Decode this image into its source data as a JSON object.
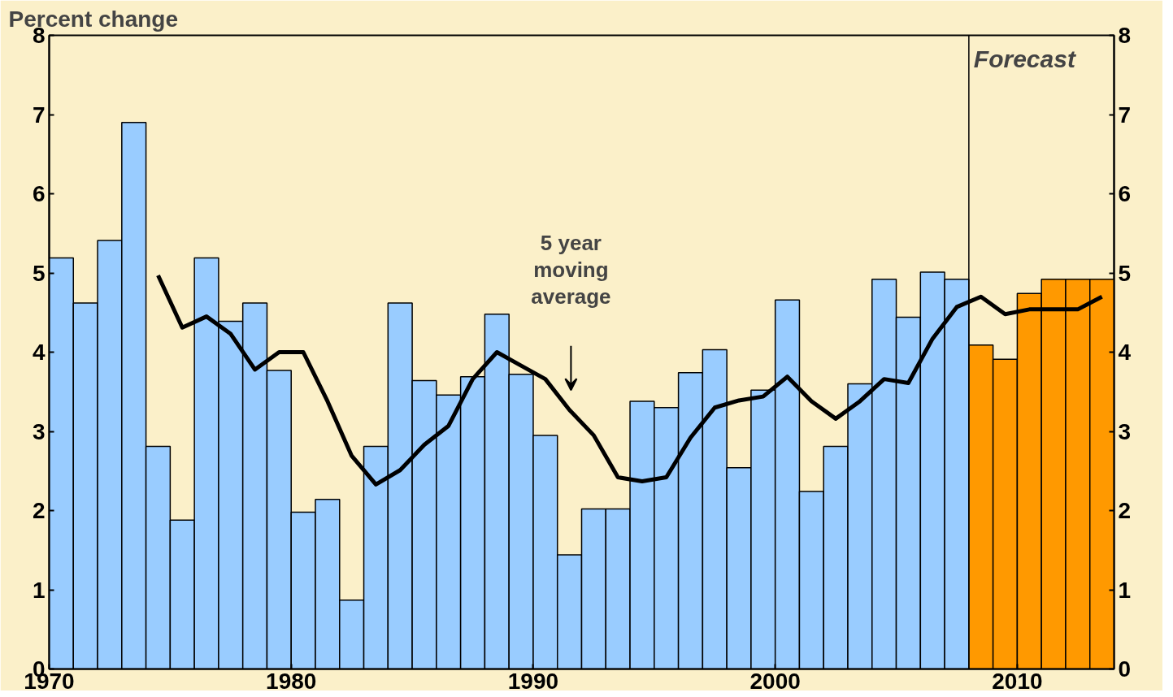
{
  "chart_data": {
    "type": "bar",
    "ylabel": "Percent change",
    "x": [
      1970.5,
      1971.5,
      1972.5,
      1973.5,
      1974.5,
      1975.5,
      1976.5,
      1977.5,
      1978.5,
      1979.5,
      1980.5,
      1981.5,
      1982.5,
      1983.5,
      1984.5,
      1985.5,
      1986.5,
      1987.5,
      1988.5,
      1989.5,
      1990.5,
      1991.5,
      1992.5,
      1993.5,
      1994.5,
      1995.5,
      1996.5,
      1997.5,
      1998.5,
      1999.5,
      2000.5,
      2001.5,
      2002.5,
      2003.5,
      2004.5,
      2005.5,
      2006.5,
      2007.5,
      2008.5,
      2009.5,
      2010.5,
      2011.5,
      2012.5,
      2013.5
    ],
    "series": [
      {
        "colors": [
          "#99ccff",
          "#99ccff",
          "#99ccff",
          "#99ccff",
          "#99ccff",
          "#99ccff",
          "#99ccff",
          "#99ccff",
          "#99ccff",
          "#99ccff",
          "#99ccff",
          "#99ccff",
          "#99ccff",
          "#99ccff",
          "#99ccff",
          "#99ccff",
          "#99ccff",
          "#99ccff",
          "#99ccff",
          "#99ccff",
          "#99ccff",
          "#99ccff",
          "#99ccff",
          "#99ccff",
          "#99ccff",
          "#99ccff",
          "#99ccff",
          "#99ccff",
          "#99ccff",
          "#99ccff",
          "#99ccff",
          "#99ccff",
          "#99ccff",
          "#99ccff",
          "#99ccff",
          "#99ccff",
          "#99ccff",
          "#99ccff",
          "#ff9900",
          "#ff9900",
          "#ff9900",
          "#ff9900",
          "#ff9900",
          "#ff9900"
        ],
        "values": [
          5.19,
          4.62,
          5.41,
          6.9,
          2.81,
          1.88,
          5.19,
          4.39,
          4.62,
          3.77,
          1.98,
          2.14,
          0.87,
          2.81,
          4.62,
          3.64,
          3.46,
          3.69,
          4.48,
          3.72,
          2.95,
          1.44,
          2.02,
          2.02,
          3.38,
          3.3,
          3.74,
          4.03,
          2.54,
          3.52,
          4.66,
          2.24,
          2.81,
          3.6,
          4.92,
          4.44,
          5.01,
          4.92,
          4.09,
          3.91,
          4.74,
          4.92,
          4.92,
          4.92
        ]
      },
      {
        "type": "line",
        "color": "#000000",
        "x": [
          1974.5,
          1975.5,
          1976.5,
          1977.5,
          1978.5,
          1979.5,
          1980.5,
          1981.5,
          1982.5,
          1983.5,
          1984.5,
          1985.5,
          1986.5,
          1987.5,
          1988.5,
          1989.5,
          1990.5,
          1991.5,
          1992.5,
          1993.5,
          1994.5,
          1995.5,
          1996.5,
          1997.5,
          1998.5,
          1999.5,
          2000.5,
          2001.5,
          2002.5,
          2003.5,
          2004.5,
          2005.5,
          2006.5,
          2007.5,
          2008.5,
          2009.5,
          2010.5,
          2011.5,
          2012.5,
          2013.5
        ],
        "values": [
          4.97,
          4.31,
          4.45,
          4.23,
          3.78,
          4.0,
          4.0,
          3.38,
          2.69,
          2.33,
          2.51,
          2.83,
          3.07,
          3.66,
          4.0,
          3.83,
          3.66,
          3.27,
          2.95,
          2.42,
          2.37,
          2.42,
          2.92,
          3.3,
          3.39,
          3.44,
          3.69,
          3.38,
          3.16,
          3.38,
          3.66,
          3.61,
          4.17,
          4.57,
          4.7,
          4.48,
          4.54,
          4.54,
          4.54,
          4.7
        ]
      }
    ],
    "xlim": [
      1970,
      2014
    ],
    "xticks": [
      1970,
      1980,
      1990,
      2000,
      2010
    ],
    "ylim": [
      0,
      8
    ],
    "yticks": [
      0,
      1,
      2,
      3,
      4,
      5,
      6,
      7,
      8
    ],
    "y2lim": [
      0,
      8
    ],
    "y2ticks": [
      0,
      1,
      2,
      3,
      4,
      5,
      6,
      7,
      8
    ],
    "ref_lines": [
      {
        "axis": "x",
        "value": 2008,
        "label": "Forecast",
        "color": "#000000"
      }
    ],
    "annotations": [
      "5 year moving average"
    ],
    "grid": false
  }
}
